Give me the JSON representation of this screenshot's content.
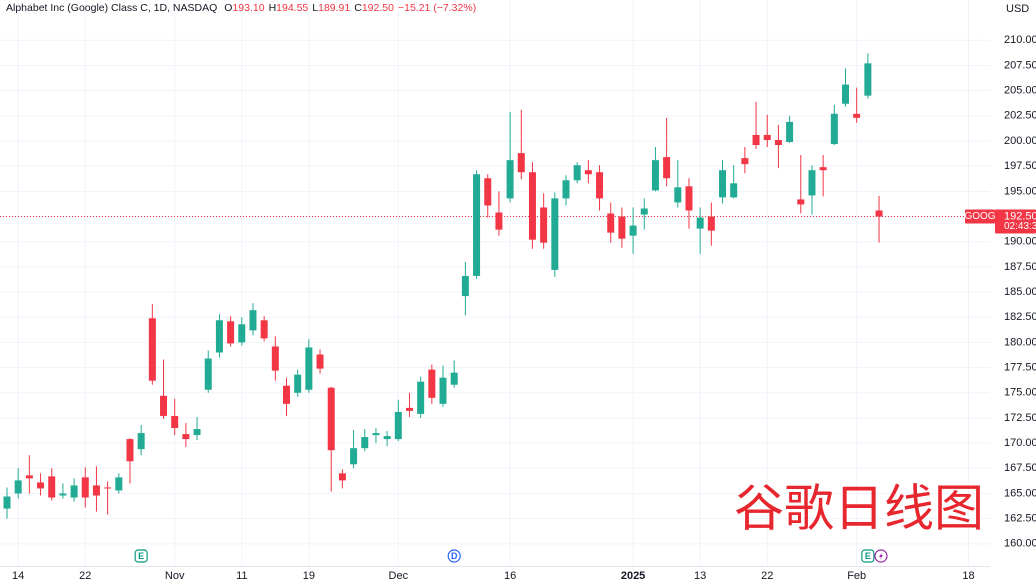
{
  "chart_data": {
    "type": "candlestick",
    "legend_header": {
      "title": "Alphabet Inc (Google) Class C, 1D, NASDAQ",
      "ohlc": [
        {
          "key": "O",
          "value": "193.10"
        },
        {
          "key": "H",
          "value": "194.55"
        },
        {
          "key": "L",
          "value": "189.91"
        },
        {
          "key": "C",
          "value": "192.50"
        }
      ],
      "change": "−15.21 (−7.32%)"
    },
    "currency": "USD",
    "watermark": "谷歌日线图",
    "up_color": "#22ab94",
    "down_color": "#f23645",
    "categories": [
      null,
      "14",
      null,
      null,
      null,
      null,
      null,
      "22",
      null,
      null,
      null,
      null,
      null,
      null,
      null,
      "Nov",
      null,
      null,
      null,
      null,
      null,
      "11",
      null,
      null,
      null,
      null,
      null,
      "19",
      null,
      null,
      null,
      null,
      null,
      null,
      null,
      "Dec",
      null,
      null,
      null,
      null,
      null,
      null,
      null,
      null,
      null,
      "16",
      null,
      null,
      null,
      null,
      null,
      null,
      null,
      null,
      null,
      null,
      "2025",
      null,
      null,
      null,
      null,
      null,
      "13",
      null,
      null,
      null,
      null,
      null,
      "22",
      null,
      null,
      null,
      null,
      null,
      null,
      null,
      "Feb",
      null,
      null,
      null,
      null,
      null,
      null,
      null,
      null,
      null,
      "18"
    ],
    "open": [
      163.5,
      165.0,
      166.8,
      166.1,
      166.7,
      164.8,
      164.6,
      166.6,
      165.8,
      165.6,
      165.3,
      170.4,
      169.4,
      182.4,
      174.7,
      172.7,
      170.9,
      170.8,
      175.3,
      179.0,
      182.1,
      180.0,
      181.2,
      182.2,
      179.6,
      175.7,
      175.0,
      175.3,
      178.8,
      175.5,
      167.0,
      167.9,
      169.5,
      170.8,
      170.4,
      170.4,
      173.5,
      172.9,
      177.3,
      173.9,
      175.8,
      184.6,
      186.6,
      196.3,
      192.9,
      194.3,
      198.8,
      196.9,
      193.4,
      187.2,
      194.3,
      196.1,
      197.1,
      196.9,
      192.8,
      192.5,
      190.6,
      192.7,
      195.1,
      198.4,
      193.9,
      195.5,
      191.3,
      192.5,
      194.4,
      194.4,
      198.3,
      200.6,
      200.6,
      200.1,
      199.9,
      194.2,
      194.6,
      197.4,
      199.7,
      203.7,
      202.7,
      204.5,
      193.1,
      null,
      null,
      null,
      null,
      null,
      null,
      null,
      null
    ],
    "high": [
      165.6,
      167.5,
      168.8,
      167,
      167.5,
      166,
      166.5,
      167.6,
      167.7,
      166.2,
      167,
      170.5,
      171.8,
      183.8,
      178.3,
      174.4,
      172,
      172.6,
      179.2,
      182.8,
      182.6,
      182.5,
      183.9,
      182.6,
      180.6,
      176.5,
      177.3,
      180.3,
      179.3,
      175.6,
      167.4,
      171.3,
      171.4,
      171.5,
      171.2,
      174.3,
      175,
      176.6,
      177.8,
      177.7,
      178.2,
      188,
      197.1,
      196.7,
      195,
      202.9,
      203.1,
      197.9,
      194.8,
      194.9,
      196.6,
      197.9,
      198.1,
      197.6,
      193.9,
      193.4,
      193.4,
      194.3,
      199.4,
      202.3,
      198.1,
      196.3,
      193.4,
      193.9,
      198.1,
      197.6,
      199.4,
      203.9,
      202.6,
      201.6,
      202.5,
      198.6,
      197.6,
      198.6,
      203.6,
      207.2,
      205.3,
      208.7,
      194.55,
      null,
      null,
      null,
      null,
      null,
      null,
      null,
      null
    ],
    "low": [
      162.5,
      164.5,
      165,
      164.8,
      164.3,
      164.5,
      164.2,
      163.6,
      163.2,
      162.9,
      165,
      166,
      168.8,
      175.8,
      172.4,
      170.8,
      169.6,
      170.3,
      175,
      178.5,
      179.6,
      179.7,
      180.7,
      180.1,
      176.2,
      172.7,
      174.6,
      175,
      176.9,
      165.2,
      165.5,
      167.5,
      169.2,
      170,
      169.7,
      170.2,
      172.6,
      172.5,
      173.9,
      173.6,
      175.5,
      182.7,
      186.3,
      192.4,
      190.6,
      193.9,
      196.2,
      189.3,
      189.3,
      186.5,
      193.6,
      195.8,
      195.8,
      193.1,
      189.9,
      189.4,
      188.8,
      191.2,
      195,
      195.5,
      193.4,
      191.3,
      188.8,
      189.6,
      193.8,
      194.3,
      196.8,
      199.2,
      199.4,
      197.3,
      199.8,
      192.8,
      192.7,
      194.5,
      199.6,
      203.4,
      201.8,
      204.2,
      189.91,
      null,
      null,
      null,
      null,
      null,
      null,
      null,
      null
    ],
    "close": [
      164.7,
      166.3,
      166.5,
      165.5,
      164.6,
      165.0,
      165.8,
      164.6,
      164.8,
      165.5,
      166.6,
      168.2,
      171.0,
      176.2,
      172.7,
      171.5,
      170.4,
      171.4,
      178.4,
      182.2,
      179.9,
      181.8,
      183.2,
      180.4,
      177.2,
      173.9,
      176.8,
      179.5,
      177.4,
      169.3,
      166.3,
      169.5,
      170.6,
      171.0,
      170.7,
      173.1,
      173.2,
      176.1,
      174.5,
      176.5,
      177.0,
      186.6,
      196.7,
      193.6,
      191.2,
      198.1,
      196.9,
      190.2,
      189.9,
      194.3,
      196.1,
      197.6,
      196.7,
      194.3,
      190.9,
      190.3,
      191.6,
      193.3,
      198.1,
      196.3,
      195.4,
      193.1,
      192.4,
      191.1,
      197.1,
      195.8,
      197.7,
      199.6,
      200.1,
      199.6,
      201.9,
      193.7,
      197.1,
      197.1,
      202.7,
      205.6,
      202.3,
      207.71,
      192.5,
      null,
      null,
      null,
      null,
      null,
      null,
      null,
      null
    ],
    "ylim": [
      157.8,
      214
    ],
    "yticks": [
      {
        "value": 160,
        "label": "160.00"
      },
      {
        "value": 162.5,
        "label": "162.50"
      },
      {
        "value": 165,
        "label": "165.00"
      },
      {
        "value": 167.5,
        "label": "167.50"
      },
      {
        "value": 170,
        "label": "170.00"
      },
      {
        "value": 172.5,
        "label": "172.50"
      },
      {
        "value": 175,
        "label": "175.00"
      },
      {
        "value": 177.5,
        "label": "177.50"
      },
      {
        "value": 180,
        "label": "180.00"
      },
      {
        "value": 182.5,
        "label": "182.50"
      },
      {
        "value": 185,
        "label": "185.00"
      },
      {
        "value": 187.5,
        "label": "187.50"
      },
      {
        "value": 190,
        "label": "190.00"
      },
      {
        "value": 192.5,
        "label": "192.50"
      },
      {
        "value": 195,
        "label": "195.00"
      },
      {
        "value": 197.5,
        "label": "197.50"
      },
      {
        "value": 200,
        "label": "200.00"
      },
      {
        "value": 202.5,
        "label": "202.50"
      },
      {
        "value": 205,
        "label": "205.00"
      },
      {
        "value": 207.5,
        "label": "207.50"
      },
      {
        "value": 210,
        "label": "210.00"
      }
    ],
    "grid": true,
    "price_line": {
      "symbol": "GOOG",
      "value": 192.5,
      "label": "192.50",
      "countdown": "02:43:3"
    },
    "events": [
      {
        "label": "E",
        "at": 12
      },
      {
        "label": "D",
        "at": 40
      },
      {
        "label": "E",
        "at": 77
      }
    ]
  }
}
